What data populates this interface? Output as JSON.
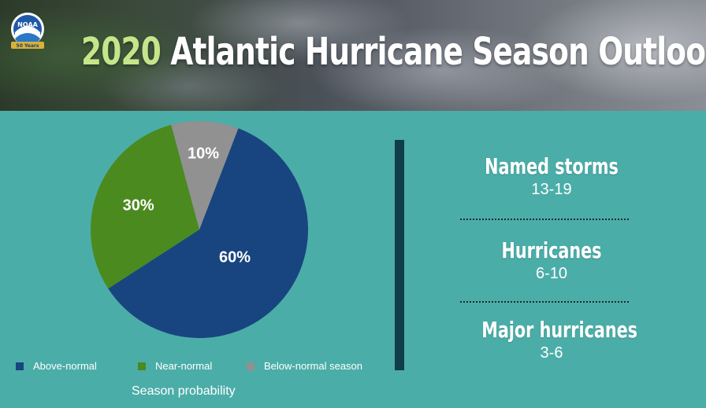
{
  "header": {
    "year": "2020",
    "title_rest": "Atlantic Hurricane Season Outlook",
    "logo_text": "NOAA",
    "logo_ribbon": "50 Years"
  },
  "chart_data": {
    "type": "pie",
    "title": "Season probability",
    "slices": [
      {
        "label": "Above-normal",
        "value": 60,
        "display": "60%",
        "color": "#18457f"
      },
      {
        "label": "Near-normal",
        "value": 30,
        "display": "30%",
        "color": "#4b8a1f"
      },
      {
        "label": "Below-normal season",
        "value": 10,
        "display": "10%",
        "color": "#919191"
      }
    ],
    "legend_position": "bottom"
  },
  "stats": [
    {
      "title": "Named storms",
      "value": "13-19"
    },
    {
      "title": "Hurricanes",
      "value": "6-10"
    },
    {
      "title": "Major hurricanes",
      "value": "3-6"
    }
  ],
  "colors": {
    "background": "#4bada8",
    "divider": "#0f3d48",
    "year_accent": "#c6e58a"
  }
}
